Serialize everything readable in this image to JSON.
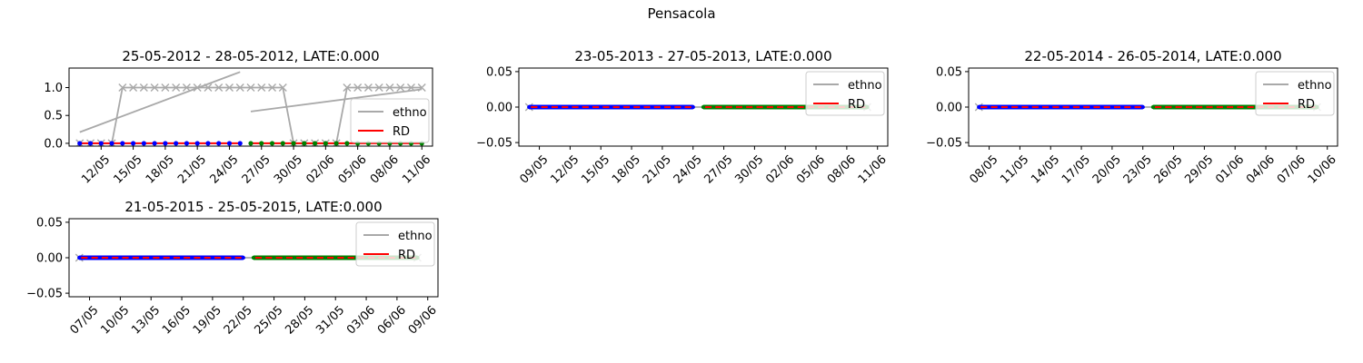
{
  "figure": {
    "suptitle": "Pensacola"
  },
  "chart_data": [
    {
      "type": "line",
      "title": "25-05-2012 - 28-05-2012, LATE:0.000",
      "xlabel": "",
      "ylabel": "",
      "xlim": [
        "2012-05-09",
        "2012-06-12"
      ],
      "ylim": [
        -0.05,
        1.35
      ],
      "yticks": [
        0.0,
        0.5,
        1.0
      ],
      "ytick_labels": [
        "0.0",
        "0.5",
        "1.0"
      ],
      "xtick_labels": [
        "12/05",
        "15/05",
        "18/05",
        "21/05",
        "24/05",
        "27/05",
        "30/05",
        "02/06",
        "05/06",
        "08/06",
        "11/06"
      ],
      "xticks": [
        "2012-05-12",
        "2012-05-15",
        "2012-05-18",
        "2012-05-21",
        "2012-05-24",
        "2012-05-27",
        "2012-05-30",
        "2012-06-02",
        "2012-06-05",
        "2012-06-08",
        "2012-06-11"
      ],
      "legend": {
        "entries": [
          {
            "label": "ethno",
            "color": "#a9a9a9"
          },
          {
            "label": "RD",
            "color": "#ff0000"
          }
        ],
        "placement": "right"
      },
      "grid": false,
      "series": [
        {
          "name": "ethno",
          "color": "#a9a9a9",
          "marker": "x",
          "x": [
            "2012-05-10",
            "2012-05-11",
            "2012-05-12",
            "2012-05-13",
            "2012-05-14",
            "2012-05-15",
            "2012-05-16",
            "2012-05-17",
            "2012-05-18",
            "2012-05-19",
            "2012-05-20",
            "2012-05-21",
            "2012-05-22",
            "2012-05-23",
            "2012-05-24",
            "2012-05-25",
            "2012-05-26",
            "2012-05-27",
            "2012-05-28",
            "2012-05-29",
            "2012-05-30",
            "2012-05-31",
            "2012-06-01",
            "2012-06-02",
            "2012-06-03",
            "2012-06-04",
            "2012-06-05",
            "2012-06-06",
            "2012-06-07",
            "2012-06-08",
            "2012-06-09",
            "2012-06-10",
            "2012-06-11"
          ],
          "y": [
            0,
            0,
            0,
            0,
            1,
            1,
            1,
            1,
            1,
            1,
            1,
            1,
            1,
            1,
            1,
            1,
            1,
            1,
            1,
            1,
            0,
            0,
            0,
            0,
            0,
            1,
            1,
            1,
            1,
            1,
            1,
            1,
            1
          ]
        },
        {
          "name": "ethno (trend)",
          "color": "#a9a9a9",
          "marker": "none",
          "x": [
            "2012-05-10",
            "2012-05-25"
          ],
          "y": [
            0.2,
            1.28
          ]
        },
        {
          "name": "ethno (trend 2)",
          "color": "#a9a9a9",
          "marker": "none",
          "x": [
            "2012-05-26",
            "2012-06-11"
          ],
          "y": [
            0.57,
            0.97
          ]
        },
        {
          "name": "RD",
          "color": "#ff0000",
          "marker": "none",
          "x": [
            "2012-05-10",
            "2012-05-25",
            "2012-05-26",
            "2012-06-11"
          ],
          "y": [
            0,
            0,
            0,
            0
          ]
        }
      ]
    },
    {
      "type": "line",
      "title": "23-05-2013 - 27-05-2013, LATE:0.000",
      "xlabel": "",
      "ylabel": "",
      "xlim": [
        "2013-05-07",
        "2013-06-12"
      ],
      "ylim": [
        -0.055,
        0.055
      ],
      "yticks": [
        -0.05,
        0.0,
        0.05
      ],
      "ytick_labels": [
        "−0.05",
        "0.00",
        "0.05"
      ],
      "xtick_labels": [
        "09/05",
        "12/05",
        "15/05",
        "18/05",
        "21/05",
        "24/05",
        "27/05",
        "30/05",
        "02/06",
        "05/06",
        "08/06",
        "11/06"
      ],
      "xticks": [
        "2013-05-09",
        "2013-05-12",
        "2013-05-15",
        "2013-05-18",
        "2013-05-21",
        "2013-05-24",
        "2013-05-27",
        "2013-05-30",
        "2013-06-02",
        "2013-06-05",
        "2013-06-08",
        "2013-06-11"
      ],
      "legend": {
        "entries": [
          {
            "label": "ethno",
            "color": "#a9a9a9"
          },
          {
            "label": "RD",
            "color": "#ff0000"
          }
        ],
        "placement": "upper right"
      },
      "grid": false,
      "series": [
        {
          "name": "ethno",
          "color": "#a9a9a9",
          "marker": "x",
          "x": [
            "2013-05-08",
            "2013-06-10"
          ],
          "y": [
            0,
            0
          ]
        },
        {
          "name": "RD",
          "color": "#ff0000",
          "marker": "none",
          "x": [
            "2013-05-08",
            "2013-06-10"
          ],
          "y": [
            0,
            0
          ]
        }
      ]
    },
    {
      "type": "line",
      "title": "22-05-2014 - 26-05-2014, LATE:0.000",
      "xlabel": "",
      "ylabel": "",
      "xlim": [
        "2014-05-06",
        "2014-06-11"
      ],
      "ylim": [
        -0.055,
        0.055
      ],
      "yticks": [
        -0.05,
        0.0,
        0.05
      ],
      "ytick_labels": [
        "−0.05",
        "0.00",
        "0.05"
      ],
      "xtick_labels": [
        "08/05",
        "11/05",
        "14/05",
        "17/05",
        "20/05",
        "23/05",
        "26/05",
        "29/05",
        "01/06",
        "04/06",
        "07/06",
        "10/06"
      ],
      "xticks": [
        "2014-05-08",
        "2014-05-11",
        "2014-05-14",
        "2014-05-17",
        "2014-05-20",
        "2014-05-23",
        "2014-05-26",
        "2014-05-29",
        "2014-06-01",
        "2014-06-04",
        "2014-06-07",
        "2014-06-10"
      ],
      "legend": {
        "entries": [
          {
            "label": "ethno",
            "color": "#a9a9a9"
          },
          {
            "label": "RD",
            "color": "#ff0000"
          }
        ],
        "placement": "upper right"
      },
      "grid": false,
      "series": [
        {
          "name": "ethno",
          "color": "#a9a9a9",
          "marker": "x",
          "x": [
            "2014-05-07",
            "2014-06-09"
          ],
          "y": [
            0,
            0
          ]
        },
        {
          "name": "RD",
          "color": "#ff0000",
          "marker": "none",
          "x": [
            "2014-05-07",
            "2014-06-09"
          ],
          "y": [
            0,
            0
          ]
        }
      ]
    },
    {
      "type": "line",
      "title": "21-05-2015 - 25-05-2015, LATE:0.000",
      "xlabel": "",
      "ylabel": "",
      "xlim": [
        "2015-05-05",
        "2015-06-10"
      ],
      "ylim": [
        -0.055,
        0.055
      ],
      "yticks": [
        -0.05,
        0.0,
        0.05
      ],
      "ytick_labels": [
        "−0.05",
        "0.00",
        "0.05"
      ],
      "xtick_labels": [
        "07/05",
        "10/05",
        "13/05",
        "16/05",
        "19/05",
        "22/05",
        "25/05",
        "28/05",
        "31/05",
        "03/06",
        "06/06",
        "09/06"
      ],
      "xticks": [
        "2015-05-07",
        "2015-05-10",
        "2015-05-13",
        "2015-05-16",
        "2015-05-19",
        "2015-05-22",
        "2015-05-25",
        "2015-05-28",
        "2015-05-31",
        "2015-06-03",
        "2015-06-06",
        "2015-06-09"
      ],
      "legend": {
        "entries": [
          {
            "label": "ethno",
            "color": "#a9a9a9"
          },
          {
            "label": "RD",
            "color": "#ff0000"
          }
        ],
        "placement": "upper right"
      },
      "grid": false,
      "series": [
        {
          "name": "ethno",
          "color": "#a9a9a9",
          "marker": "x",
          "x": [
            "2015-05-06",
            "2015-06-08"
          ],
          "y": [
            0,
            0
          ]
        },
        {
          "name": "RD",
          "color": "#ff0000",
          "marker": "none",
          "x": [
            "2015-05-06",
            "2015-06-08"
          ],
          "y": [
            0,
            0
          ]
        }
      ]
    }
  ]
}
